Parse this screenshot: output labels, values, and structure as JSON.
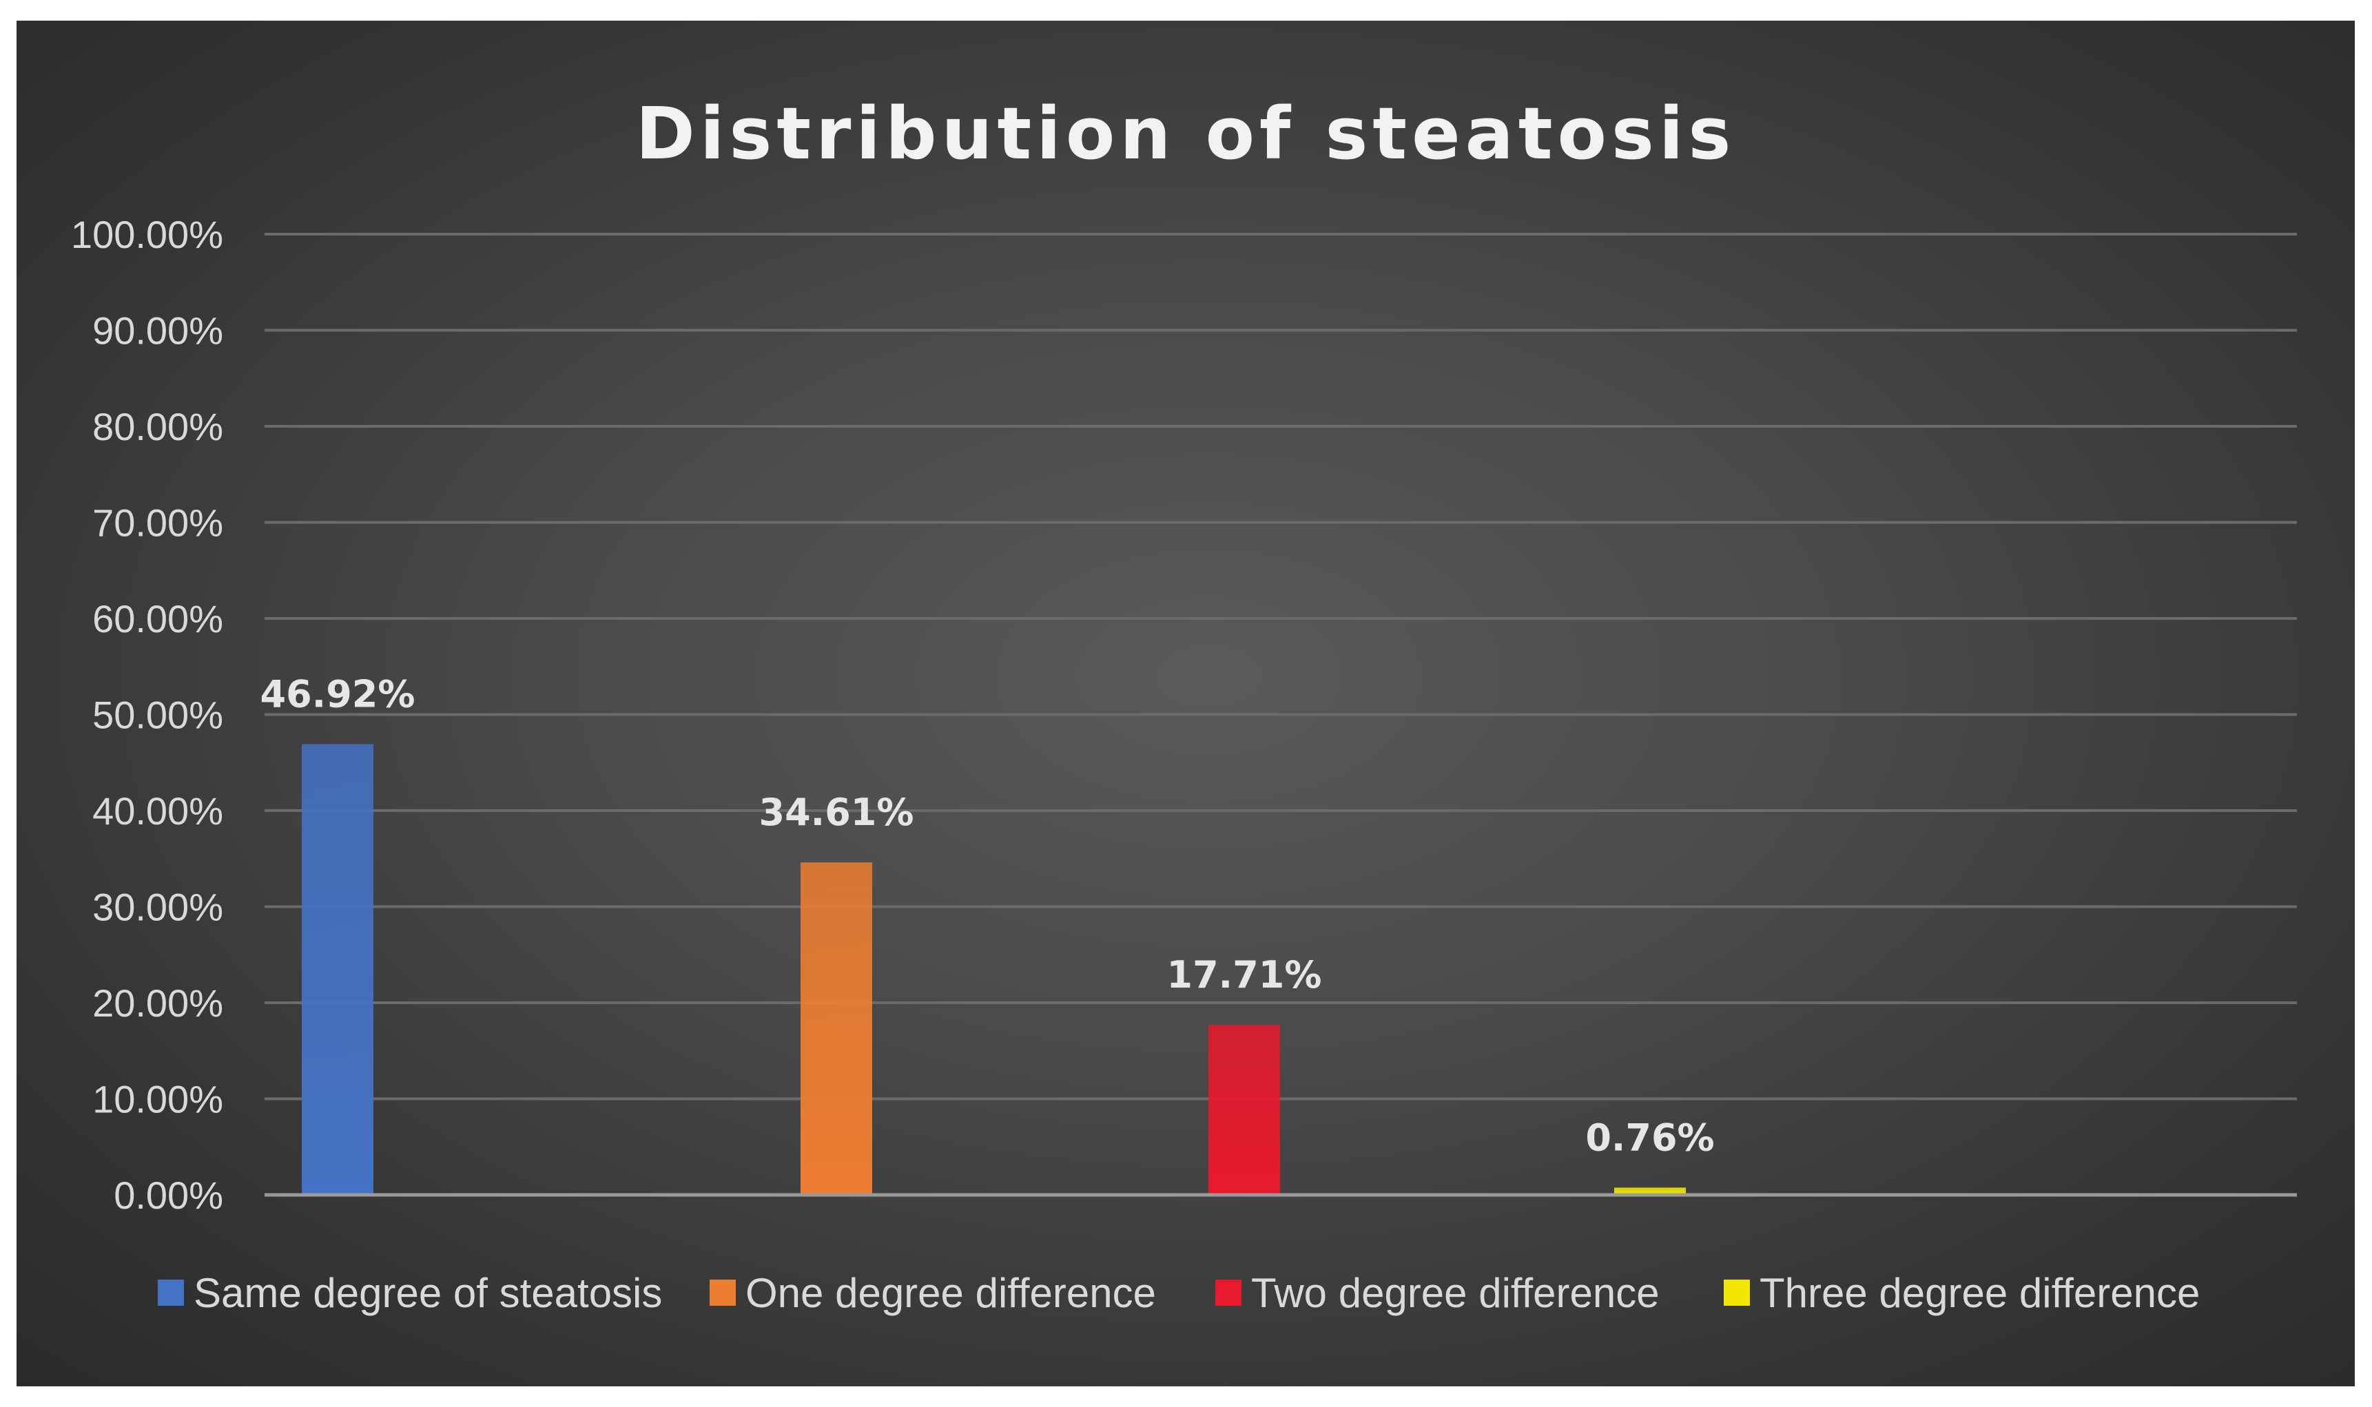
{
  "chart_data": {
    "type": "bar",
    "title": "Distribution of steatosis",
    "xlabel": "",
    "ylabel": "",
    "ylim": [
      0,
      100
    ],
    "y_ticks": [
      "0.00%",
      "10.00%",
      "20.00%",
      "30.00%",
      "40.00%",
      "50.00%",
      "60.00%",
      "70.00%",
      "80.00%",
      "90.00%",
      "100.00%"
    ],
    "grid": true,
    "legend_position": "bottom",
    "series": [
      {
        "name": "Same degree of steatosis",
        "value": 46.92,
        "label": "46.92%",
        "color": "#4472c4"
      },
      {
        "name": "One degree difference",
        "value": 34.61,
        "label": "34.61%",
        "color": "#ed7d31"
      },
      {
        "name": "Two degree difference",
        "value": 17.71,
        "label": "17.71%",
        "color": "#e8192c"
      },
      {
        "name": "Three degree difference",
        "value": 0.76,
        "label": "0.76%",
        "color": "#f2e600"
      }
    ]
  }
}
